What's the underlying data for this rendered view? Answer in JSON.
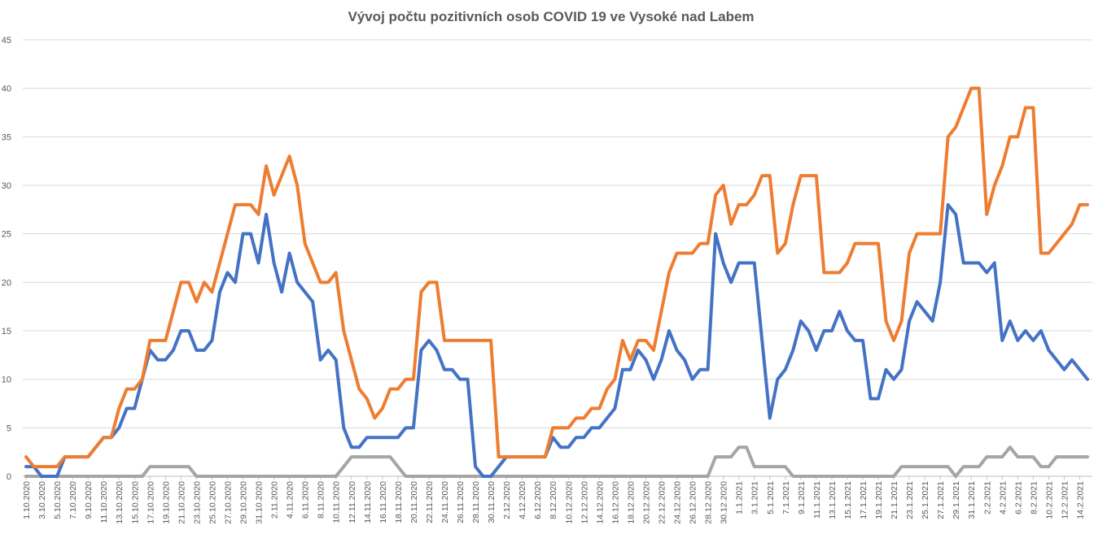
{
  "chart_data": {
    "type": "line",
    "title": "Vývoj počtu pozitivních osob COVID 19 ve Vysoké nad Labem",
    "xlabel": "",
    "ylabel": "",
    "ylim": [
      0,
      45
    ],
    "yticks": [
      "0",
      "5",
      "10",
      "15",
      "20",
      "25",
      "30",
      "35",
      "40",
      "45"
    ],
    "grid": true,
    "legend": "none",
    "x": [
      "1.10.2020",
      "2.10.2020",
      "3.10.2020",
      "4.10.2020",
      "5.10.2020",
      "6.10.2020",
      "7.10.2020",
      "8.10.2020",
      "9.10.2020",
      "10.10.2020",
      "11.10.2020",
      "12.10.2020",
      "13.10.2020",
      "14.10.2020",
      "15.10.2020",
      "16.10.2020",
      "17.10.2020",
      "18.10.2020",
      "19.10.2020",
      "20.10.2020",
      "21.10.2020",
      "22.10.2020",
      "23.10.2020",
      "24.10.2020",
      "25.10.2020",
      "26.10.2020",
      "27.10.2020",
      "28.10.2020",
      "29.10.2020",
      "30.10.2020",
      "31.10.2020",
      "1.11.2020",
      "2.11.2020",
      "3.11.2020",
      "4.11.2020",
      "5.11.2020",
      "6.11.2020",
      "7.11.2020",
      "8.11.2020",
      "9.11.2020",
      "10.11.2020",
      "11.11.2020",
      "12.11.2020",
      "13.11.2020",
      "14.11.2020",
      "15.11.2020",
      "16.11.2020",
      "17.11.2020",
      "18.11.2020",
      "19.11.2020",
      "20.11.2020",
      "21.11.2020",
      "22.11.2020",
      "23.11.2020",
      "24.11.2020",
      "25.11.2020",
      "26.11.2020",
      "27.11.2020",
      "28.11.2020",
      "29.11.2020",
      "30.11.2020",
      "1.12.2020",
      "2.12.2020",
      "3.12.2020",
      "4.12.2020",
      "5.12.2020",
      "6.12.2020",
      "7.12.2020",
      "8.12.2020",
      "9.12.2020",
      "10.12.2020",
      "11.12.2020",
      "12.12.2020",
      "13.12.2020",
      "14.12.2020",
      "15.12.2020",
      "16.12.2020",
      "17.12.2020",
      "18.12.2020",
      "19.12.2020",
      "20.12.2020",
      "21.12.2020",
      "22.12.2020",
      "23.12.2020",
      "24.12.2020",
      "25.12.2020",
      "26.12.2020",
      "27.12.2020",
      "28.12.2020",
      "29.12.2020",
      "30.12.2020",
      "31.12.2020",
      "1.1.2021",
      "2.1.2021",
      "3.1.2021",
      "4.1.2021",
      "5.1.2021",
      "6.1.2021",
      "7.1.2021",
      "8.1.2021",
      "9.1.2021",
      "10.1.2021",
      "11.1.2021",
      "12.1.2021",
      "13.1.2021",
      "14.1.2021",
      "15.1.2021",
      "16.1.2021",
      "17.1.2021",
      "18.1.2021",
      "19.1.2021",
      "20.1.2021",
      "21.1.2021",
      "22.1.2021",
      "23.1.2021",
      "24.1.2021",
      "25.1.2021",
      "26.1.2021",
      "27.1.2021",
      "28.1.2021",
      "29.1.2021",
      "30.1.2021",
      "31.1.2021",
      "1.2.2021",
      "2.2.2021",
      "3.2.2021",
      "4.2.2021",
      "5.2.2021",
      "6.2.2021",
      "7.2.2021",
      "8.2.2021",
      "9.2.2021",
      "10.2.2021",
      "11.2.2021",
      "12.2.2021",
      "13.2.2021",
      "14.2.2021",
      "15.2.2021"
    ],
    "tick_labels": [
      "1.10.2020",
      "3.10.2020",
      "5.10.2020",
      "7.10.2020",
      "9.10.2020",
      "11.10.2020",
      "13.10.2020",
      "15.10.2020",
      "17.10.2020",
      "19.10.2020",
      "21.10.2020",
      "23.10.2020",
      "25.10.2020",
      "27.10.2020",
      "29.10.2020",
      "31.10.2020",
      "2.11.2020",
      "4.11.2020",
      "6.11.2020",
      "8.11.2020",
      "10.11.2020",
      "12.11.2020",
      "14.11.2020",
      "16.11.2020",
      "18.11.2020",
      "20.11.2020",
      "22.11.2020",
      "24.11.2020",
      "26.11.2020",
      "28.11.2020",
      "30.11.2020",
      "2.12.2020",
      "4.12.2020",
      "6.12.2020",
      "8.12.2020",
      "10.12.2020",
      "12.12.2020",
      "14.12.2020",
      "16.12.2020",
      "18.12.2020",
      "20.12.2020",
      "22.12.2020",
      "24.12.2020",
      "26.12.2020",
      "28.12.2020",
      "30.12.2020",
      "1.1.2021",
      "3.1.2021",
      "5.1.2021",
      "7.1.2021",
      "9.1.2021",
      "11.1.2021",
      "13.1.2021",
      "15.1.2021",
      "17.1.2021",
      "19.1.2021",
      "21.1.2021",
      "23.1.2021",
      "25.1.2021",
      "27.1.2021",
      "29.1.2021",
      "31.1.2021",
      "2.2.2021",
      "4.2.2021",
      "6.2.2021",
      "8.2.2021",
      "10.2.2021",
      "12.2.2021",
      "14.2.2021"
    ],
    "series": [
      {
        "color": "#4472c4",
        "values": [
          1,
          1,
          0,
          0,
          0,
          2,
          2,
          2,
          2,
          3,
          4,
          4,
          5,
          7,
          7,
          10,
          13,
          12,
          12,
          13,
          15,
          15,
          13,
          13,
          14,
          19,
          21,
          20,
          25,
          25,
          22,
          27,
          22,
          19,
          23,
          20,
          19,
          18,
          12,
          13,
          12,
          5,
          3,
          3,
          4,
          4,
          4,
          4,
          4,
          5,
          5,
          13,
          14,
          13,
          11,
          11,
          10,
          10,
          1,
          0,
          0,
          1,
          2,
          2,
          2,
          2,
          2,
          2,
          4,
          3,
          3,
          4,
          4,
          5,
          5,
          6,
          7,
          11,
          11,
          13,
          12,
          10,
          12,
          15,
          13,
          12,
          10,
          11,
          11,
          25,
          22,
          20,
          22,
          22,
          22,
          14,
          6,
          10,
          11,
          13,
          16,
          15,
          13,
          15,
          15,
          17,
          15,
          14,
          14,
          8,
          8,
          11,
          10,
          11,
          16,
          18,
          17,
          16,
          20,
          28,
          27,
          22,
          22,
          22,
          21,
          22,
          14,
          16,
          14,
          15,
          14,
          15,
          13,
          12,
          11,
          12,
          11,
          10
        ]
      },
      {
        "color": "#ed7d31",
        "values": [
          2,
          1,
          1,
          1,
          1,
          2,
          2,
          2,
          2,
          3,
          4,
          4,
          7,
          9,
          9,
          10,
          14,
          14,
          14,
          17,
          20,
          20,
          18,
          20,
          19,
          22,
          25,
          28,
          28,
          28,
          27,
          32,
          29,
          31,
          33,
          30,
          24,
          22,
          20,
          20,
          21,
          15,
          12,
          9,
          8,
          6,
          7,
          9,
          9,
          10,
          10,
          19,
          20,
          20,
          14,
          14,
          14,
          14,
          14,
          14,
          14,
          2,
          2,
          2,
          2,
          2,
          2,
          2,
          5,
          5,
          5,
          6,
          6,
          7,
          7,
          9,
          10,
          14,
          12,
          14,
          14,
          13,
          17,
          21,
          23,
          23,
          23,
          24,
          24,
          29,
          30,
          26,
          28,
          28,
          29,
          31,
          31,
          23,
          24,
          28,
          31,
          31,
          31,
          21,
          21,
          21,
          22,
          24,
          24,
          24,
          24,
          16,
          14,
          16,
          23,
          25,
          25,
          25,
          25,
          35,
          36,
          38,
          40,
          40,
          27,
          30,
          32,
          35,
          35,
          38,
          38,
          23,
          23,
          24,
          25,
          26,
          28,
          28
        ]
      },
      {
        "color": "#a5a5a5",
        "values": [
          0,
          0,
          0,
          0,
          0,
          0,
          0,
          0,
          0,
          0,
          0,
          0,
          0,
          0,
          0,
          0,
          1,
          1,
          1,
          1,
          1,
          1,
          0,
          0,
          0,
          0,
          0,
          0,
          0,
          0,
          0,
          0,
          0,
          0,
          0,
          0,
          0,
          0,
          0,
          0,
          0,
          1,
          2,
          2,
          2,
          2,
          2,
          2,
          1,
          0,
          0,
          0,
          0,
          0,
          0,
          0,
          0,
          0,
          0,
          0,
          0,
          0,
          0,
          0,
          0,
          0,
          0,
          0,
          0,
          0,
          0,
          0,
          0,
          0,
          0,
          0,
          0,
          0,
          0,
          0,
          0,
          0,
          0,
          0,
          0,
          0,
          0,
          0,
          0,
          2,
          2,
          2,
          3,
          3,
          1,
          1,
          1,
          1,
          1,
          0,
          0,
          0,
          0,
          0,
          0,
          0,
          0,
          0,
          0,
          0,
          0,
          0,
          0,
          1,
          1,
          1,
          1,
          1,
          1,
          1,
          0,
          1,
          1,
          1,
          2,
          2,
          2,
          3,
          2,
          2,
          2,
          1,
          1,
          2,
          2,
          2,
          2,
          2
        ]
      }
    ]
  }
}
